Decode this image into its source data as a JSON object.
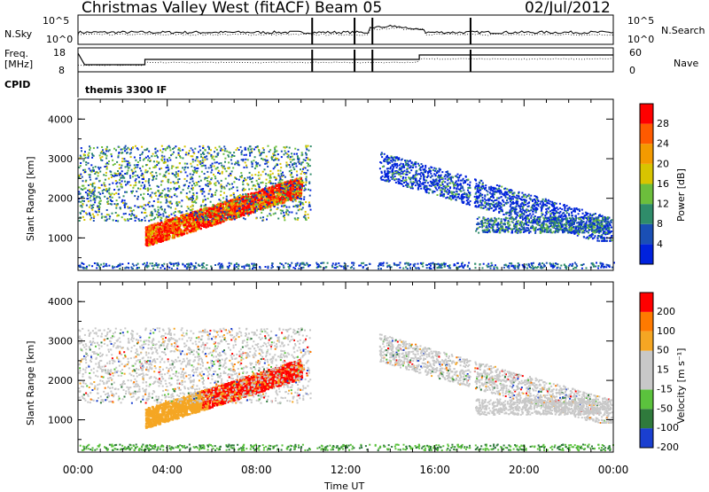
{
  "header": {
    "station": "Christmas Valley West (fitACF)",
    "beam": "Beam 05",
    "date": "02/Jul/2012"
  },
  "top_panels": {
    "nsky_label": "N.Sky",
    "nsearch_label": "N.Search",
    "nsky_ticks": [
      "10^5",
      "10^0"
    ],
    "nsearch_ticks": [
      "10^5",
      "10^0"
    ],
    "freq_label_1": "Freq.",
    "freq_label_2": "[MHz]",
    "freq_ticks": [
      "18",
      "8"
    ],
    "nave_label": "Nave",
    "nave_ticks": [
      "60",
      "0"
    ],
    "cpid_label": "CPID",
    "cpid_text": "themis 3300 IF"
  },
  "colors": {
    "power_scale": [
      "#0022dd",
      "#1a4fb5",
      "#2f8c6a",
      "#6cbe3c",
      "#d8c400",
      "#f39a00",
      "#ff5a00",
      "#ff0000"
    ],
    "velocity_scale": [
      "#1a3fd0",
      "#2f7a3c",
      "#5bc23d",
      "#c8c8c8",
      "#c8c8c8",
      "#f5a623",
      "#ff7a00",
      "#ff0000"
    ]
  },
  "chart_data": [
    {
      "type": "heatmap",
      "name": "power",
      "ylabel": "Slant Range [km]",
      "colorbar_label": "Power [dB]",
      "colorbar_ticks": [
        "28",
        "24",
        "20",
        "16",
        "12",
        "8",
        "4"
      ],
      "yticks": [
        "4000",
        "3000",
        "2000",
        "1000"
      ],
      "xticks": [
        "00:00",
        "04:00",
        "08:00",
        "12:00",
        "16:00",
        "20:00",
        "00:00"
      ],
      "ylim": [
        180,
        4500
      ],
      "xlim": [
        0,
        24
      ]
    },
    {
      "type": "heatmap",
      "name": "velocity",
      "ylabel": "Slant Range [km]",
      "colorbar_label": "Velocity [m s⁻¹]",
      "colorbar_ticks": [
        "200",
        "100",
        "50",
        "15",
        "-15",
        "-50",
        "-100",
        "-200"
      ],
      "yticks": [
        "4000",
        "3000",
        "2000",
        "1000"
      ],
      "xticks": [
        "00:00",
        "04:00",
        "08:00",
        "12:00",
        "16:00",
        "20:00",
        "00:00"
      ],
      "xlabel": "Time UT",
      "ylim": [
        180,
        4500
      ],
      "xlim": [
        0,
        24
      ]
    }
  ]
}
